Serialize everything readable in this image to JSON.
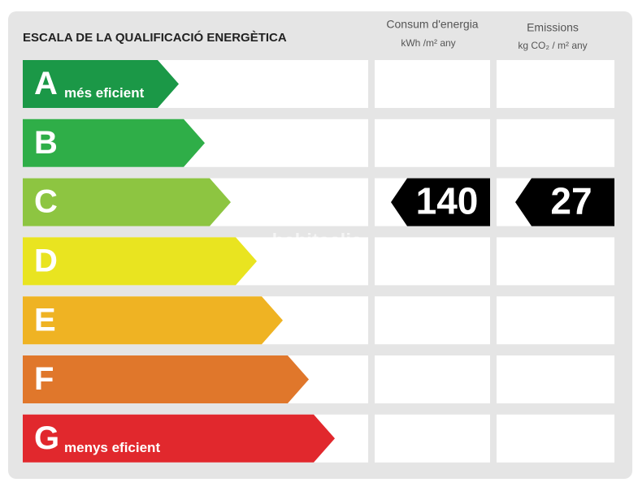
{
  "title": "ESCALA DE LA QUALIFICACIÓ ENERGÈTICA",
  "watermark": "habitaclia",
  "columns": [
    {
      "title": "Consum d'energia",
      "unit": "kWh /m² any"
    },
    {
      "title": "Emissions",
      "unit": "kg CO₂ / m² any"
    }
  ],
  "classes": [
    {
      "letter": "A",
      "label": "més eficient",
      "color": "#1b9847"
    },
    {
      "letter": "B",
      "color": "#2fae48"
    },
    {
      "letter": "C",
      "color": "#8dc541",
      "consumption": 140,
      "emissions": 27
    },
    {
      "letter": "D",
      "color": "#e9e420"
    },
    {
      "letter": "E",
      "color": "#efb323"
    },
    {
      "letter": "F",
      "color": "#e0772b"
    },
    {
      "letter": "G",
      "label": "menys eficient",
      "color": "#e1282d"
    }
  ]
}
